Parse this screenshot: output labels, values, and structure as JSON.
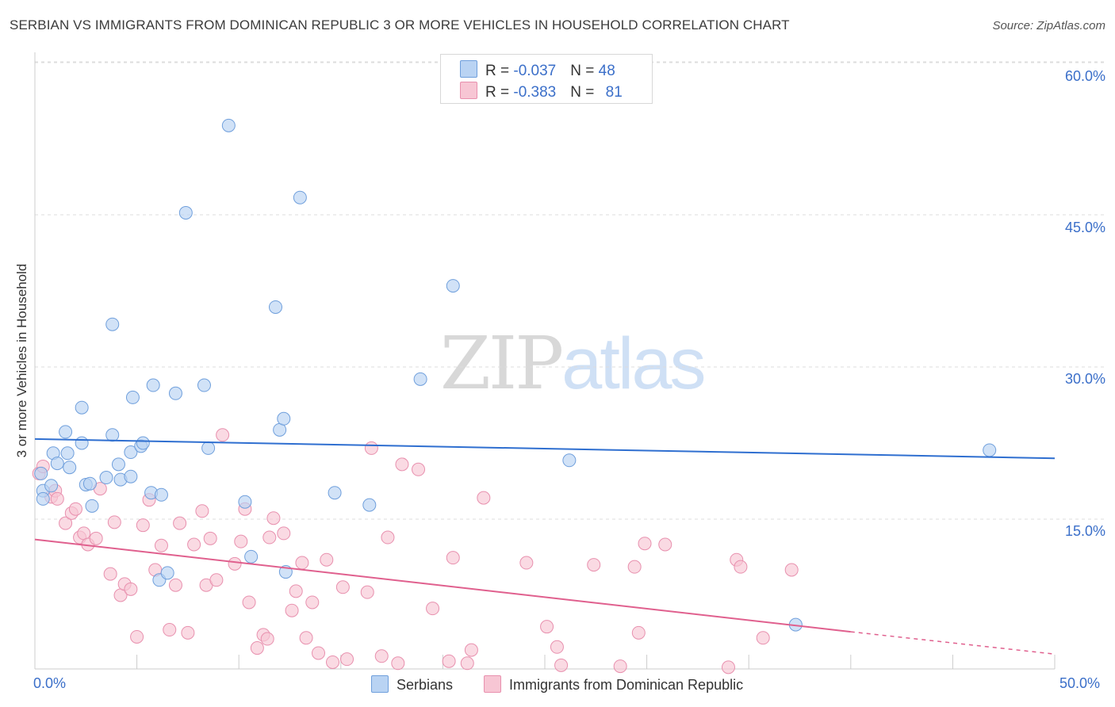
{
  "title": "SERBIAN VS IMMIGRANTS FROM DOMINICAN REPUBLIC 3 OR MORE VEHICLES IN HOUSEHOLD CORRELATION CHART",
  "source": "Source: ZipAtlas.com",
  "watermark": {
    "zip": "ZIP",
    "atlas": "atlas"
  },
  "legend_top": [
    {
      "r_label": "R = ",
      "r_value": "-0.037",
      "n_label": "N = ",
      "n_value": "48"
    },
    {
      "r_label": "R = ",
      "r_value": "-0.383",
      "n_label": "N = ",
      "n_value": "81"
    }
  ],
  "legend_bottom": [
    "Serbians",
    "Immigrants from Dominican Republic"
  ],
  "colors": {
    "blue_fill": "#b9d3f3",
    "blue_stroke": "#6f9fdc",
    "blue_line": "#2f6fd0",
    "pink_fill": "#f7c6d4",
    "pink_stroke": "#e890ae",
    "pink_line": "#e0608e",
    "grid": "#dddddd",
    "tick_text": "#3b6fc9"
  },
  "chart_data": {
    "type": "scatter",
    "title": "SERBIAN VS IMMIGRANTS FROM DOMINICAN REPUBLIC 3 OR MORE VEHICLES IN HOUSEHOLD CORRELATION CHART",
    "xlabel": "",
    "ylabel": "3 or more Vehicles in Household",
    "xlim": [
      0,
      50
    ],
    "ylim": [
      0,
      62
    ],
    "x_tick_labels": [
      "0.0%",
      "50.0%"
    ],
    "y_ticks": [
      15,
      30,
      45,
      60
    ],
    "y_tick_labels": [
      "15.0%",
      "30.0%",
      "45.0%",
      "60.0%"
    ],
    "grid": true,
    "legend_position": "top-center",
    "series": [
      {
        "name": "Serbians",
        "r": -0.037,
        "n": 48,
        "trend": {
          "x": [
            0,
            50
          ],
          "y": [
            22.9,
            21.0
          ]
        },
        "points": [
          [
            0.3,
            19.5
          ],
          [
            0.4,
            17.8
          ],
          [
            0.4,
            17.0
          ],
          [
            0.8,
            18.3
          ],
          [
            0.9,
            21.5
          ],
          [
            1.1,
            20.5
          ],
          [
            1.5,
            23.6
          ],
          [
            1.6,
            21.5
          ],
          [
            1.7,
            20.1
          ],
          [
            2.3,
            22.5
          ],
          [
            2.5,
            18.4
          ],
          [
            2.7,
            18.5
          ],
          [
            2.8,
            16.3
          ],
          [
            3.5,
            19.1
          ],
          [
            3.8,
            23.3
          ],
          [
            4.1,
            20.4
          ],
          [
            4.2,
            18.9
          ],
          [
            4.7,
            21.6
          ],
          [
            4.7,
            19.2
          ],
          [
            5.2,
            22.2
          ],
          [
            5.3,
            22.5
          ],
          [
            5.7,
            17.6
          ],
          [
            6.1,
            9.0
          ],
          [
            6.2,
            17.4
          ],
          [
            6.5,
            9.7
          ],
          [
            2.3,
            26.0
          ],
          [
            3.8,
            34.2
          ],
          [
            4.8,
            27.0
          ],
          [
            5.8,
            28.2
          ],
          [
            6.9,
            27.4
          ],
          [
            7.4,
            45.2
          ],
          [
            8.3,
            28.2
          ],
          [
            8.5,
            22.0
          ],
          [
            9.5,
            53.8
          ],
          [
            10.3,
            16.7
          ],
          [
            10.6,
            11.3
          ],
          [
            11.8,
            35.9
          ],
          [
            12.0,
            23.8
          ],
          [
            12.2,
            24.9
          ],
          [
            12.3,
            9.8
          ],
          [
            13.0,
            46.7
          ],
          [
            14.7,
            17.6
          ],
          [
            16.4,
            16.4
          ],
          [
            18.9,
            28.8
          ],
          [
            20.5,
            38.0
          ],
          [
            26.2,
            20.8
          ],
          [
            46.8,
            21.8
          ],
          [
            37.3,
            4.6
          ]
        ]
      },
      {
        "name": "Immigrants from Dominican Republic",
        "r": -0.383,
        "n": 81,
        "trend": {
          "x": [
            0,
            40
          ],
          "y": [
            13.0,
            3.9
          ]
        },
        "trend_dashed": {
          "x": [
            40,
            50
          ],
          "y": [
            3.9,
            1.7
          ]
        },
        "points": [
          [
            0.2,
            19.5
          ],
          [
            0.8,
            17.2
          ],
          [
            1.0,
            17.8
          ],
          [
            1.1,
            17.0
          ],
          [
            1.5,
            14.6
          ],
          [
            1.8,
            15.6
          ],
          [
            2.0,
            16.0
          ],
          [
            2.2,
            13.2
          ],
          [
            2.4,
            13.6
          ],
          [
            2.6,
            12.5
          ],
          [
            3.0,
            13.1
          ],
          [
            3.2,
            18.0
          ],
          [
            3.7,
            9.6
          ],
          [
            3.9,
            14.7
          ],
          [
            4.2,
            7.5
          ],
          [
            4.4,
            8.6
          ],
          [
            4.7,
            8.1
          ],
          [
            5.0,
            3.4
          ],
          [
            5.3,
            14.4
          ],
          [
            5.6,
            16.9
          ],
          [
            5.9,
            10.0
          ],
          [
            6.2,
            12.4
          ],
          [
            6.6,
            4.1
          ],
          [
            6.9,
            8.5
          ],
          [
            7.1,
            14.6
          ],
          [
            7.5,
            3.8
          ],
          [
            7.8,
            12.5
          ],
          [
            8.2,
            15.8
          ],
          [
            8.4,
            8.5
          ],
          [
            8.6,
            13.1
          ],
          [
            8.9,
            9.0
          ],
          [
            9.2,
            23.3
          ],
          [
            9.8,
            10.6
          ],
          [
            10.1,
            12.8
          ],
          [
            10.3,
            16.0
          ],
          [
            10.5,
            6.8
          ],
          [
            10.9,
            2.3
          ],
          [
            11.2,
            3.6
          ],
          [
            11.4,
            3.2
          ],
          [
            11.5,
            13.2
          ],
          [
            11.7,
            15.1
          ],
          [
            12.2,
            13.6
          ],
          [
            12.6,
            6.0
          ],
          [
            12.8,
            7.9
          ],
          [
            13.1,
            10.7
          ],
          [
            13.3,
            3.3
          ],
          [
            13.6,
            6.8
          ],
          [
            13.9,
            1.8
          ],
          [
            14.3,
            11.0
          ],
          [
            14.6,
            0.9
          ],
          [
            15.1,
            8.3
          ],
          [
            15.3,
            1.2
          ],
          [
            16.3,
            7.8
          ],
          [
            16.5,
            22.0
          ],
          [
            17.0,
            1.5
          ],
          [
            17.3,
            13.2
          ],
          [
            17.8,
            0.8
          ],
          [
            18.0,
            20.4
          ],
          [
            18.8,
            19.9
          ],
          [
            19.5,
            6.2
          ],
          [
            20.3,
            1.0
          ],
          [
            20.5,
            11.2
          ],
          [
            21.2,
            0.8
          ],
          [
            21.4,
            2.1
          ],
          [
            22.0,
            17.1
          ],
          [
            24.1,
            10.7
          ],
          [
            25.1,
            4.4
          ],
          [
            25.6,
            2.4
          ],
          [
            25.8,
            0.6
          ],
          [
            27.4,
            10.5
          ],
          [
            28.7,
            0.5
          ],
          [
            29.4,
            10.3
          ],
          [
            29.6,
            3.8
          ],
          [
            29.9,
            12.6
          ],
          [
            30.9,
            12.5
          ],
          [
            34.0,
            0.4
          ],
          [
            34.4,
            11.0
          ],
          [
            34.6,
            10.3
          ],
          [
            35.7,
            3.3
          ],
          [
            37.1,
            10.0
          ],
          [
            0.4,
            20.2
          ]
        ]
      }
    ]
  }
}
